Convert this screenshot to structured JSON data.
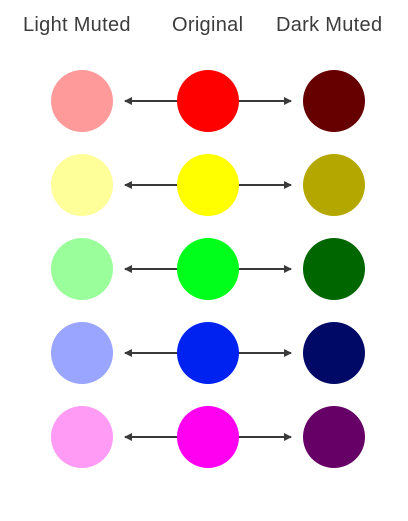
{
  "headers": {
    "light": "Light Muted",
    "original": "Original",
    "dark": "Dark Muted"
  },
  "arrow_color": "#3a3a3a",
  "rows": [
    {
      "name": "red",
      "light": "#ff9a9a",
      "original": "#ff0000",
      "dark": "#660000"
    },
    {
      "name": "yellow",
      "light": "#ffff9a",
      "original": "#ffff00",
      "dark": "#b4a800"
    },
    {
      "name": "green",
      "light": "#9aff9a",
      "original": "#00ff1a",
      "dark": "#006600"
    },
    {
      "name": "blue",
      "light": "#9aa5ff",
      "original": "#0022f0",
      "dark": "#000a66"
    },
    {
      "name": "magenta",
      "light": "#ff9af5",
      "original": "#ff00f0",
      "dark": "#660066"
    }
  ]
}
